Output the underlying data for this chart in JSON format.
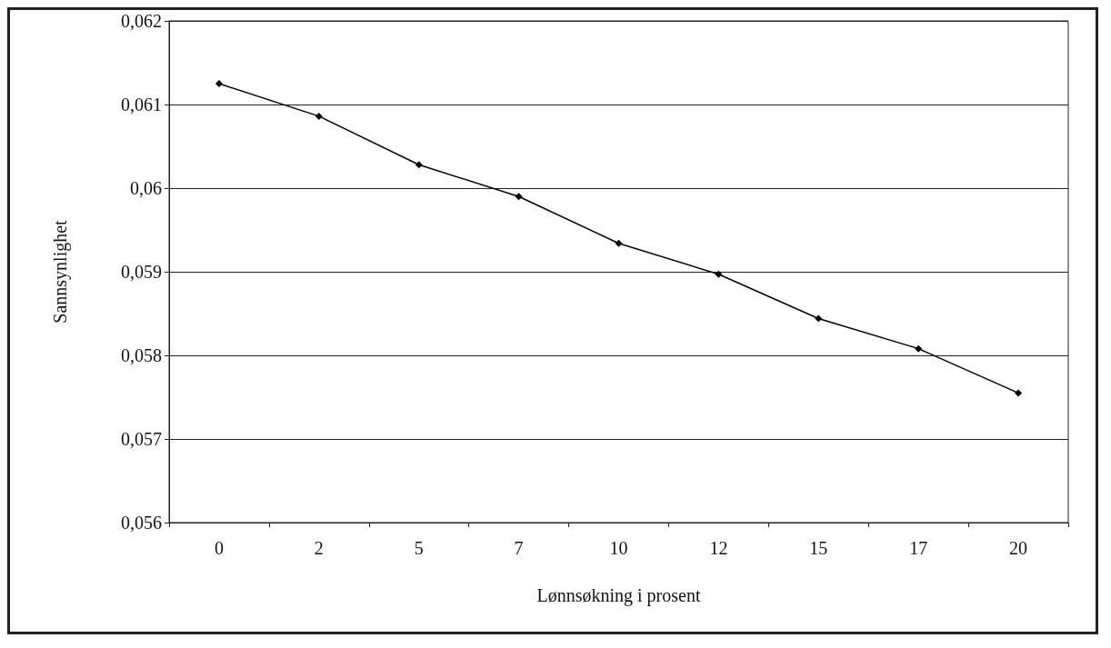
{
  "chart_data": {
    "type": "line",
    "xlabel": "Lønnsøkning i prosent",
    "ylabel": "Sannsynlighet",
    "categories": [
      "0",
      "2",
      "5",
      "7",
      "10",
      "12",
      "15",
      "17",
      "20"
    ],
    "series": [
      {
        "color": "#000000",
        "values": [
          0.06125,
          0.06086,
          0.06028,
          0.0599,
          0.05934,
          0.05897,
          0.05844,
          0.05808,
          0.05755
        ]
      }
    ],
    "ylim": [
      0.056,
      0.062
    ],
    "yticks": [
      {
        "value": 0.056,
        "label": "0,056"
      },
      {
        "value": 0.057,
        "label": "0,057"
      },
      {
        "value": 0.058,
        "label": "0,058"
      },
      {
        "value": 0.059,
        "label": "0,059"
      },
      {
        "value": 0.06,
        "label": "0,06"
      },
      {
        "value": 0.061,
        "label": "0,061"
      },
      {
        "value": 0.062,
        "label": "0,062"
      }
    ],
    "grid": "y",
    "marker": "diamond",
    "line_style": "solid"
  }
}
